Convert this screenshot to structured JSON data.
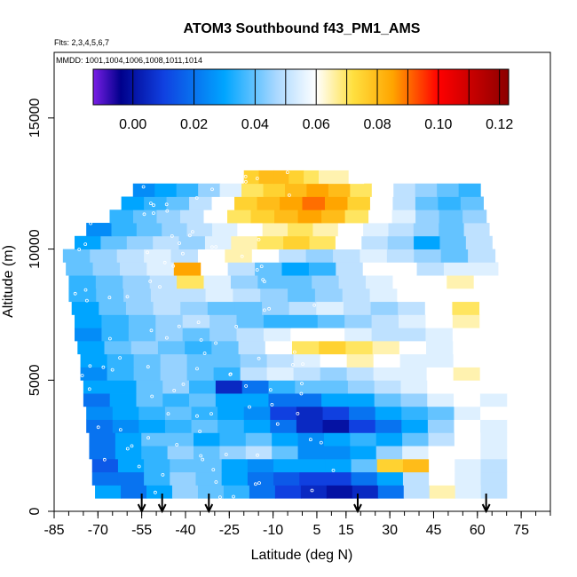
{
  "chart_data": {
    "type": "heatmap",
    "title": "ATOM3 Southbound f43_PM1_AMS",
    "flights_note": "Flts: 2,3,4,5,6,7",
    "dates_note": "MMDD: 1001,1004,1006,1008,1011,1014",
    "xlabel": "Latitude (deg N)",
    "ylabel": "Altitude (m)",
    "xlim": [
      -85,
      85
    ],
    "ylim": [
      0,
      17500
    ],
    "x_ticks": [
      -85,
      -70,
      -55,
      -40,
      -25,
      -10,
      5,
      15,
      30,
      45,
      60,
      75
    ],
    "y_ticks": [
      0,
      5000,
      10000,
      15000
    ],
    "colorbar": {
      "range": [
        -0.013,
        0.123
      ],
      "ticks": [
        0.0,
        0.02,
        0.04,
        0.06,
        0.08,
        0.1,
        0.12
      ],
      "tick_labels": [
        "0.00",
        "0.02",
        "0.04",
        "0.06",
        "0.08",
        "0.10",
        "0.12"
      ],
      "stops": [
        {
          "v": -0.013,
          "c": "#7a1ee6"
        },
        {
          "v": -0.004,
          "c": "#00008b"
        },
        {
          "v": 0.01,
          "c": "#1040e0"
        },
        {
          "v": 0.03,
          "c": "#00a5ff"
        },
        {
          "v": 0.047,
          "c": "#aad8ff"
        },
        {
          "v": 0.06,
          "c": "#ffffff"
        },
        {
          "v": 0.072,
          "c": "#ffe040"
        },
        {
          "v": 0.085,
          "c": "#ffa500"
        },
        {
          "v": 0.1,
          "c": "#ff0000"
        },
        {
          "v": 0.123,
          "c": "#8b0000"
        }
      ]
    },
    "arrow_latitudes": [
      -55,
      -48,
      -32,
      19,
      63
    ],
    "bands": [
      {
        "alt": [
          500,
          1000
        ],
        "lat": [
          -71,
          70
        ],
        "values": [
          0.03,
          0.02,
          0.03,
          0.045,
          0.04,
          0.035,
          0.02,
          0.01,
          0.005,
          0.0,
          0.005,
          0.02,
          0.05,
          0.065,
          0.055,
          0.05
        ]
      },
      {
        "alt": [
          1000,
          1500
        ],
        "lat": [
          -72,
          70
        ],
        "values": [
          0.02,
          0.02,
          0.035,
          0.045,
          0.04,
          0.03,
          0.02,
          0.015,
          0.01,
          0.01,
          0.02,
          0.03,
          0.05,
          0.06,
          0.055,
          0.05
        ]
      },
      {
        "alt": [
          1500,
          2000
        ],
        "lat": [
          -72,
          70
        ],
        "values": [
          0.015,
          0.03,
          0.035,
          0.04,
          0.04,
          0.03,
          0.025,
          0.03,
          0.03,
          0.03,
          0.04,
          0.075,
          0.08,
          0.06,
          0.055,
          0.05
        ]
      },
      {
        "alt": [
          2000,
          2500
        ],
        "lat": [
          -73,
          70
        ],
        "values": [
          0.02,
          0.03,
          0.035,
          0.045,
          0.04,
          0.045,
          0.05,
          0.04,
          0.025,
          0.025,
          0.03,
          0.045,
          0.055,
          0.06,
          0.06,
          0.055
        ]
      },
      {
        "alt": [
          2500,
          3000
        ],
        "lat": [
          -73,
          70
        ],
        "values": [
          0.02,
          0.03,
          0.04,
          0.04,
          0.03,
          0.035,
          0.04,
          0.03,
          0.025,
          0.03,
          0.035,
          0.03,
          0.04,
          0.05,
          0.06,
          0.055
        ]
      },
      {
        "alt": [
          3000,
          3500
        ],
        "lat": [
          -74,
          70
        ],
        "values": [
          0.02,
          0.025,
          0.03,
          0.035,
          0.04,
          0.035,
          0.03,
          0.02,
          0.005,
          0.0,
          0.01,
          0.02,
          0.03,
          0.045,
          0.06,
          0.055
        ]
      },
      {
        "alt": [
          3500,
          4000
        ],
        "lat": [
          -74,
          70
        ],
        "values": [
          0.025,
          0.03,
          0.035,
          0.04,
          0.035,
          0.03,
          0.025,
          0.01,
          0.005,
          0.01,
          0.02,
          0.03,
          0.035,
          0.04,
          0.055,
          0.06
        ]
      },
      {
        "alt": [
          4000,
          4500
        ],
        "lat": [
          -75,
          70
        ],
        "values": [
          0.02,
          0.03,
          0.04,
          0.035,
          0.04,
          0.03,
          0.03,
          0.02,
          0.02,
          0.03,
          0.03,
          0.04,
          0.045,
          0.055,
          0.06,
          0.055
        ]
      },
      {
        "alt": [
          4500,
          5000
        ],
        "lat": [
          -75,
          70
        ],
        "values": [
          0.03,
          0.03,
          0.04,
          0.045,
          0.035,
          0.005,
          0.02,
          0.035,
          0.04,
          0.04,
          0.045,
          0.05,
          0.055,
          0.06,
          0.06,
          0.06
        ]
      },
      {
        "alt": [
          5000,
          5500
        ],
        "lat": [
          -76,
          70
        ],
        "values": [
          0.025,
          0.035,
          0.04,
          0.045,
          0.04,
          0.035,
          0.05,
          0.055,
          0.05,
          0.045,
          0.05,
          0.055,
          0.055,
          0.06,
          0.065,
          0.06
        ]
      },
      {
        "alt": [
          5500,
          6000
        ],
        "lat": [
          -76,
          70
        ],
        "values": [
          0.03,
          0.035,
          0.04,
          0.045,
          0.04,
          0.04,
          0.045,
          0.05,
          0.055,
          0.06,
          0.065,
          0.06,
          0.055,
          0.055,
          0.06,
          0.06
        ]
      },
      {
        "alt": [
          6000,
          6500
        ],
        "lat": [
          -77,
          70
        ],
        "values": [
          0.03,
          0.04,
          0.045,
          0.04,
          0.035,
          0.04,
          0.05,
          0.06,
          0.07,
          0.075,
          0.07,
          0.065,
          0.06,
          0.055,
          0.06,
          0.06
        ]
      },
      {
        "alt": [
          6500,
          7000
        ],
        "lat": [
          -78,
          70
        ],
        "values": [
          0.025,
          0.035,
          0.04,
          0.045,
          0.04,
          0.045,
          0.05,
          0.055,
          0.06,
          0.06,
          0.055,
          0.05,
          0.05,
          0.055,
          0.06,
          0.06
        ]
      },
      {
        "alt": [
          7000,
          7500
        ],
        "lat": [
          -78,
          70
        ],
        "values": [
          0.03,
          0.035,
          0.04,
          0.045,
          0.05,
          0.045,
          0.04,
          0.035,
          0.035,
          0.04,
          0.045,
          0.05,
          0.055,
          0.06,
          0.065,
          0.06
        ]
      },
      {
        "alt": [
          7500,
          8000
        ],
        "lat": [
          -79,
          70
        ],
        "values": [
          0.03,
          0.04,
          0.045,
          0.05,
          0.045,
          0.04,
          0.04,
          0.045,
          0.05,
          0.055,
          0.05,
          0.045,
          0.05,
          0.06,
          0.07,
          0.06
        ]
      },
      {
        "alt": [
          8000,
          8500
        ],
        "lat": [
          -80,
          70
        ],
        "values": [
          0.035,
          0.04,
          0.045,
          0.05,
          0.05,
          0.055,
          0.05,
          0.045,
          0.04,
          0.045,
          0.05,
          0.055,
          0.06,
          0.06,
          0.06,
          0.06
        ]
      },
      {
        "alt": [
          8500,
          9000
        ],
        "lat": [
          -80,
          68
        ],
        "values": [
          0.035,
          0.04,
          0.045,
          0.05,
          0.07,
          0.055,
          0.045,
          0.04,
          0.04,
          0.045,
          0.05,
          0.055,
          0.06,
          0.06,
          0.065,
          0.06
        ]
      },
      {
        "alt": [
          9000,
          9500
        ],
        "lat": [
          -81,
          67
        ],
        "values": [
          0.04,
          0.045,
          0.05,
          0.055,
          0.085,
          0.06,
          0.05,
          0.04,
          0.03,
          0.035,
          0.05,
          0.06,
          0.06,
          0.05,
          0.055,
          0.055
        ]
      },
      {
        "alt": [
          9500,
          10000
        ],
        "lat": [
          -82,
          66
        ],
        "values": [
          0.04,
          0.045,
          0.05,
          0.055,
          0.05,
          0.06,
          0.065,
          0.06,
          0.05,
          0.045,
          0.05,
          0.055,
          0.05,
          0.045,
          0.04,
          0.05
        ]
      },
      {
        "alt": [
          10000,
          10500
        ],
        "lat": [
          -78,
          65
        ],
        "values": [
          0.03,
          0.04,
          0.045,
          0.05,
          0.045,
          0.055,
          0.065,
          0.07,
          0.075,
          0.07,
          0.06,
          0.05,
          0.045,
          0.03,
          0.04,
          0.05
        ]
      },
      {
        "alt": [
          10500,
          11000
        ],
        "lat": [
          -74,
          64
        ],
        "values": [
          0.025,
          0.035,
          0.04,
          0.045,
          0.05,
          0.055,
          0.06,
          0.065,
          0.07,
          0.065,
          0.06,
          0.055,
          0.05,
          0.045,
          0.04,
          0.05
        ]
      },
      {
        "alt": [
          11000,
          11500
        ],
        "lat": [
          -66,
          63
        ],
        "values": [
          0.035,
          0.04,
          0.045,
          0.05,
          0.06,
          0.07,
          0.075,
          0.08,
          0.085,
          0.08,
          0.07,
          0.06,
          0.055,
          0.045,
          0.04,
          0.045
        ]
      },
      {
        "alt": [
          11500,
          12000
        ],
        "lat": [
          -62,
          62
        ],
        "values": [
          0.03,
          0.035,
          0.04,
          0.05,
          0.06,
          0.075,
          0.08,
          0.085,
          0.09,
          0.085,
          0.075,
          0.06,
          0.05,
          0.04,
          0.035,
          0.04
        ]
      },
      {
        "alt": [
          12000,
          12500
        ],
        "lat": [
          -58,
          61
        ],
        "values": [
          0.025,
          0.03,
          0.035,
          0.045,
          0.055,
          0.07,
          0.075,
          0.08,
          0.085,
          0.08,
          0.07,
          0.06,
          0.05,
          0.045,
          0.04,
          0.035
        ]
      },
      {
        "alt": [
          12500,
          13000
        ],
        "lat": [
          -20,
          21
        ],
        "values": [
          0.075,
          0.08,
          0.08,
          0.075,
          0.07,
          0.065,
          0.065,
          0.06
        ]
      }
    ]
  }
}
